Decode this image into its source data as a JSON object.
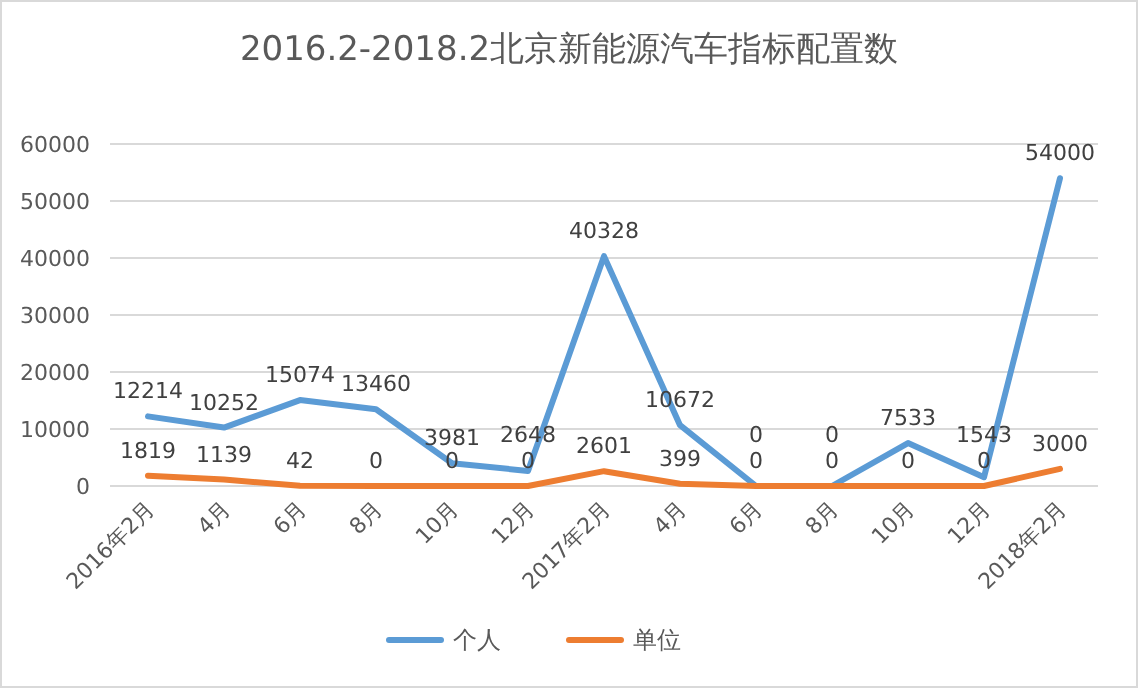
{
  "chart_data": {
    "type": "line",
    "title": "2016.2-2018.2北京新能源汽车指标配置数",
    "categories": [
      "2016年2月",
      "4月",
      "6月",
      "8月",
      "10月",
      "12月",
      "2017年2月",
      "4月",
      "6月",
      "8月",
      "10月",
      "12月",
      "2018年2月"
    ],
    "series": [
      {
        "name": "个人",
        "color": "#5b9bd5",
        "values": [
          12214,
          10252,
          15074,
          13460,
          3981,
          2648,
          40328,
          10672,
          0,
          0,
          7533,
          1543,
          54000
        ]
      },
      {
        "name": "单位",
        "color": "#ed7d31",
        "values": [
          1819,
          1139,
          42,
          0,
          0,
          0,
          2601,
          399,
          0,
          0,
          0,
          0,
          3000
        ]
      }
    ],
    "ylim": [
      0,
      60000
    ],
    "yticks": [
      0,
      10000,
      20000,
      30000,
      40000,
      50000,
      60000
    ],
    "grid": "y",
    "legend": "bottom",
    "data_labels": true,
    "marker": "none",
    "line_style": "solid"
  }
}
